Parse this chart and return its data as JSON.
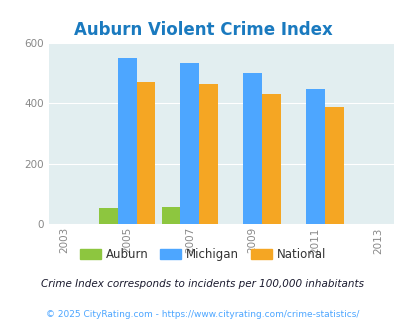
{
  "title": "Auburn Violent Crime Index",
  "years": [
    2003,
    2005,
    2007,
    2009,
    2011,
    2013
  ],
  "bar_years": [
    2005,
    2007,
    2009,
    2011
  ],
  "auburn": [
    55,
    58,
    0,
    0
  ],
  "michigan": [
    550,
    535,
    500,
    447
  ],
  "national": [
    470,
    465,
    430,
    388
  ],
  "auburn_color": "#8dc63f",
  "michigan_color": "#4da6ff",
  "national_color": "#f5a623",
  "bg_color": "#e2eef0",
  "ylim": [
    0,
    600
  ],
  "yticks": [
    0,
    200,
    400,
    600
  ],
  "title_color": "#1a7abf",
  "legend_labels": [
    "Auburn",
    "Michigan",
    "National"
  ],
  "footnote1": "Crime Index corresponds to incidents per 100,000 inhabitants",
  "footnote2": "© 2025 CityRating.com - https://www.cityrating.com/crime-statistics/",
  "bar_width": 0.6,
  "footnote1_color": "#1a1a2e",
  "footnote2_color": "#4da6ff"
}
